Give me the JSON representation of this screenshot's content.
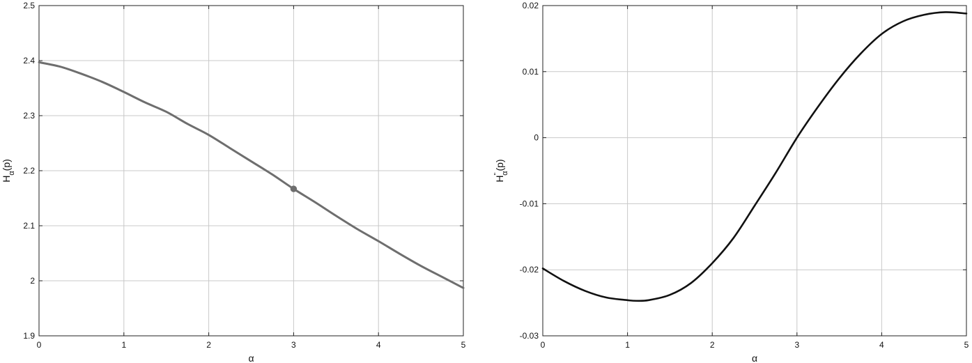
{
  "chart_data": [
    {
      "type": "line",
      "xlabel": "α",
      "ylabel": {
        "main": "H",
        "sub": "α",
        "suffix": "(p)"
      },
      "xlim": [
        0,
        5
      ],
      "ylim": [
        1.9,
        2.5
      ],
      "xticks": [
        0,
        1,
        2,
        3,
        4,
        5
      ],
      "xtick_labels": [
        "0",
        "1",
        "2",
        "3",
        "4",
        "5"
      ],
      "yticks": [
        1.9,
        2.0,
        2.1,
        2.2,
        2.3,
        2.4,
        2.5
      ],
      "ytick_labels": [
        "1.9",
        "2",
        "2.1",
        "2.2",
        "2.3",
        "2.4",
        "2.5"
      ],
      "grid": true,
      "line_color": "#6e6e6e",
      "series": [
        {
          "x": [
            0,
            0.25,
            0.5,
            0.75,
            1,
            1.25,
            1.5,
            1.75,
            2,
            2.25,
            2.5,
            2.75,
            3,
            3.25,
            3.5,
            3.75,
            4,
            4.25,
            4.5,
            4.75,
            5
          ],
          "values": [
            2.397,
            2.389,
            2.376,
            2.361,
            2.343,
            2.324,
            2.307,
            2.285,
            2.265,
            2.241,
            2.217,
            2.193,
            2.167,
            2.143,
            2.118,
            2.094,
            2.072,
            2.049,
            2.027,
            2.007,
            1.987
          ]
        }
      ],
      "markers": [
        {
          "x": 3,
          "y": 2.167
        }
      ]
    },
    {
      "type": "line",
      "xlabel": "α",
      "ylabel": {
        "main": "H",
        "sup": "\"",
        "sub": "α",
        "suffix": "(p)"
      },
      "xlim": [
        0,
        5
      ],
      "ylim": [
        -0.03,
        0.02
      ],
      "xticks": [
        0,
        1,
        2,
        3,
        4,
        5
      ],
      "xtick_labels": [
        "0",
        "1",
        "2",
        "3",
        "4",
        "5"
      ],
      "yticks": [
        -0.03,
        -0.02,
        -0.01,
        0,
        0.01,
        0.02
      ],
      "ytick_labels": [
        "-0.03",
        "-0.02",
        "-0.01",
        "0",
        "0.01",
        "0.02"
      ],
      "grid": true,
      "line_color": "#111111",
      "series": [
        {
          "x": [
            0,
            0.25,
            0.5,
            0.75,
            1,
            1.1,
            1.25,
            1.5,
            1.75,
            2,
            2.25,
            2.5,
            2.75,
            3,
            3.25,
            3.5,
            3.75,
            4,
            4.25,
            4.5,
            4.75,
            5
          ],
          "values": [
            -0.0198,
            -0.0217,
            -0.0232,
            -0.0242,
            -0.0246,
            -0.0247,
            -0.0246,
            -0.0238,
            -0.022,
            -0.019,
            -0.0152,
            -0.0103,
            -0.0053,
            0.0,
            0.0047,
            0.009,
            0.0127,
            0.0157,
            0.0176,
            0.0186,
            0.019,
            0.0188
          ]
        }
      ]
    }
  ]
}
